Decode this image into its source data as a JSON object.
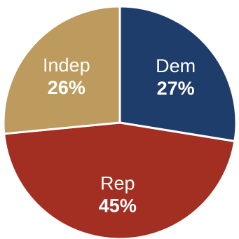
{
  "chart_data": {
    "type": "pie",
    "title": "",
    "slices": [
      {
        "label": "Dem",
        "value": 27,
        "display": "27%",
        "color": "#1f3d6b"
      },
      {
        "label": "Rep",
        "value": 45,
        "display": "45%",
        "color": "#a32e22"
      },
      {
        "label": "Indep",
        "value": 26,
        "display": "26%",
        "color": "#bd9b5e"
      }
    ]
  }
}
